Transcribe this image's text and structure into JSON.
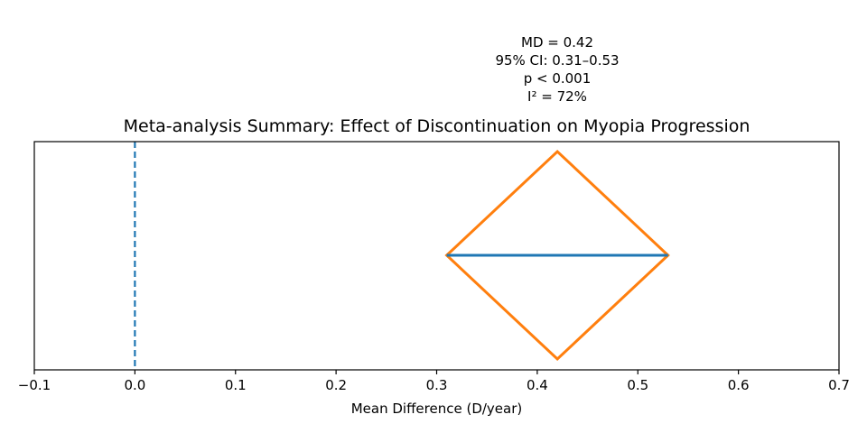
{
  "chart_data": {
    "type": "forest",
    "title": "Meta-analysis Summary: Effect of Discontinuation on Myopia Progression",
    "xlabel": "Mean Difference (D/year)",
    "ylabel": "",
    "xlim": [
      -0.1,
      0.7
    ],
    "x_ticks": [
      -0.1,
      0.0,
      0.1,
      0.2,
      0.3,
      0.4,
      0.5,
      0.6,
      0.7
    ],
    "x_tick_labels": [
      "−0.1",
      "0.0",
      "0.1",
      "0.2",
      "0.3",
      "0.4",
      "0.5",
      "0.6",
      "0.7"
    ],
    "grid": false,
    "reference_line": {
      "x": 0.0,
      "style": "dashed",
      "color": "#1f77b4"
    },
    "summary": {
      "estimate": 0.42,
      "ci_lower": 0.31,
      "ci_upper": 0.53,
      "ci_color": "#1f77b4",
      "diamond_color": "#ff7f0e"
    },
    "annotation_lines": [
      "MD = 0.42",
      "95% CI: 0.31–0.53",
      "p < 0.001",
      "I² = 72%"
    ]
  }
}
